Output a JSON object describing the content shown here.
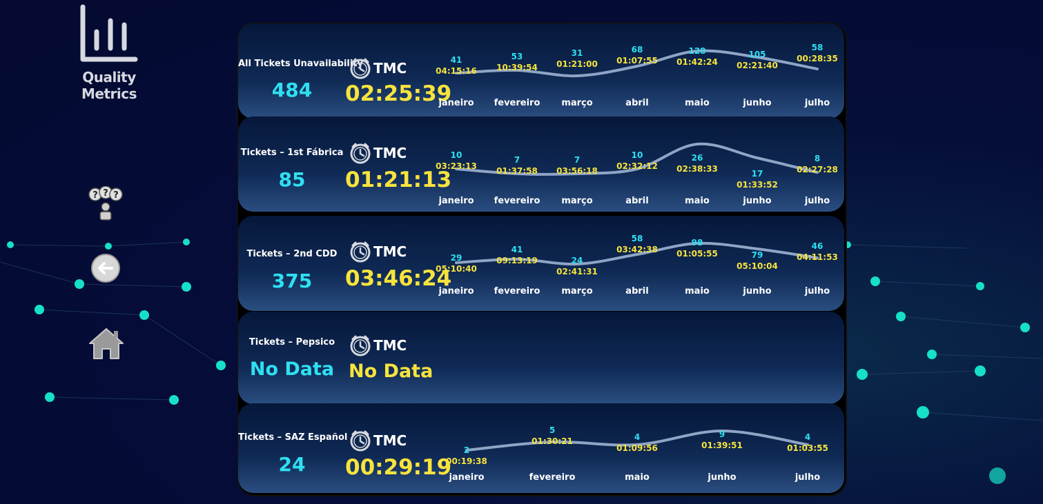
{
  "app": {
    "title": "Quality Metrics"
  },
  "sidebar": {
    "icons": [
      "support-team-icon",
      "back-arrow-icon",
      "home-icon"
    ]
  },
  "tmc_label": "TMC",
  "colors": {
    "count": "#2ee0f2",
    "time": "#f7e33d",
    "month": "#ffffff",
    "line": "#8fa5c6"
  },
  "cards": [
    {
      "title": "All Tickets Unavailability",
      "count": "484",
      "tmc": "02:25:39",
      "chart_data": {
        "type": "line",
        "categories": [
          "janeiro",
          "fevereiro",
          "março",
          "abril",
          "maio",
          "junho",
          "julho"
        ],
        "values": [
          41,
          53,
          31,
          68,
          128,
          105,
          58
        ],
        "times": [
          "04:15:16",
          "10:39:54",
          "01:21:00",
          "01:07:55",
          "01:42:24",
          "02:21:40",
          "00:28:35"
        ]
      }
    },
    {
      "title": "Tickets – 1st Fábrica",
      "count": "85",
      "tmc": "01:21:13",
      "chart_data": {
        "type": "line",
        "categories": [
          "janeiro",
          "fevereiro",
          "março",
          "abril",
          "maio",
          "junho",
          "julho"
        ],
        "values": [
          10,
          7,
          7,
          10,
          26,
          17,
          8
        ],
        "times": [
          "03:23:13",
          "01:37:58",
          "03:56:18",
          "02:32:12",
          "02:38:33",
          "01:33:52",
          "02:27:28"
        ]
      }
    },
    {
      "title": "Tickets – 2nd CDD",
      "count": "375",
      "tmc": "03:46:24",
      "chart_data": {
        "type": "line",
        "categories": [
          "janeiro",
          "fevereiro",
          "março",
          "abril",
          "maio",
          "junho",
          "julho"
        ],
        "values": [
          29,
          41,
          24,
          58,
          98,
          79,
          46
        ],
        "times": [
          "05:10:40",
          "09:13:19",
          "02:41:31",
          "03:42:38",
          "01:05:55",
          "05:10:04",
          "04:11:53"
        ]
      }
    },
    {
      "title": "Tickets – Pepsico",
      "count": "No Data",
      "tmc": "No Data"
    },
    {
      "title": "Tickets – SAZ Español",
      "count": "24",
      "tmc": "00:29:19",
      "chart_data": {
        "type": "line",
        "categories": [
          "janeiro",
          "fevereiro",
          "maio",
          "junho",
          "julho"
        ],
        "values": [
          2,
          5,
          4,
          9,
          4
        ],
        "times": [
          "00:19:38",
          "01:30:21",
          "01:09:56",
          "01:39:51",
          "01:03:55"
        ]
      }
    }
  ]
}
